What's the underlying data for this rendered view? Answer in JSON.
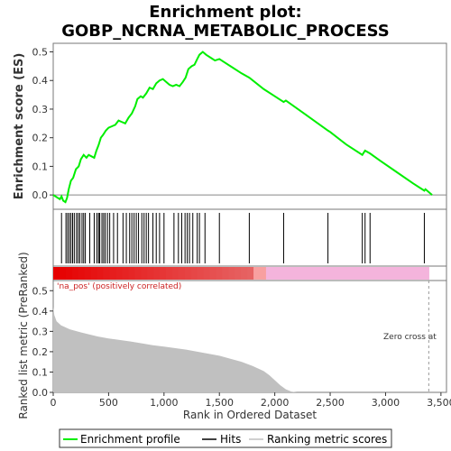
{
  "title_line1": "Enrichment plot:",
  "title_line2": "GOBP_NCRNA_METABOLIC_PROCESS",
  "colors": {
    "es_line": "#00ee00",
    "hits": "#000000",
    "metric_fill": "#c0c0c0",
    "pos_band": "#e80000",
    "neg_band": "#f4b4dc",
    "zero_cross": "#999999"
  },
  "chart_data": [
    {
      "type": "line",
      "name": "enrichment-score",
      "ylabel": "Enrichment score (ES)",
      "xlim": [
        0,
        3550
      ],
      "ylim": [
        -0.05,
        0.53
      ],
      "yticks": [
        0.0,
        0.1,
        0.2,
        0.3,
        0.4,
        0.5
      ],
      "ytick_labels": [
        "0.0",
        "0.1",
        "0.2",
        "0.3",
        "0.4",
        "0.5"
      ],
      "grid": false,
      "points": [
        [
          0,
          0.0
        ],
        [
          60,
          -0.015
        ],
        [
          75,
          -0.005
        ],
        [
          90,
          -0.02
        ],
        [
          110,
          -0.025
        ],
        [
          125,
          -0.01
        ],
        [
          140,
          0.02
        ],
        [
          160,
          0.05
        ],
        [
          180,
          0.06
        ],
        [
          205,
          0.09
        ],
        [
          230,
          0.1
        ],
        [
          250,
          0.125
        ],
        [
          275,
          0.14
        ],
        [
          300,
          0.13
        ],
        [
          320,
          0.14
        ],
        [
          345,
          0.135
        ],
        [
          370,
          0.13
        ],
        [
          390,
          0.155
        ],
        [
          410,
          0.175
        ],
        [
          430,
          0.2
        ],
        [
          450,
          0.21
        ],
        [
          475,
          0.225
        ],
        [
          500,
          0.235
        ],
        [
          530,
          0.24
        ],
        [
          560,
          0.245
        ],
        [
          590,
          0.26
        ],
        [
          620,
          0.255
        ],
        [
          650,
          0.25
        ],
        [
          680,
          0.27
        ],
        [
          710,
          0.285
        ],
        [
          740,
          0.31
        ],
        [
          760,
          0.335
        ],
        [
          790,
          0.345
        ],
        [
          810,
          0.34
        ],
        [
          840,
          0.355
        ],
        [
          870,
          0.375
        ],
        [
          900,
          0.37
        ],
        [
          930,
          0.39
        ],
        [
          960,
          0.4
        ],
        [
          990,
          0.405
        ],
        [
          1020,
          0.395
        ],
        [
          1050,
          0.385
        ],
        [
          1080,
          0.38
        ],
        [
          1110,
          0.385
        ],
        [
          1140,
          0.38
        ],
        [
          1170,
          0.395
        ],
        [
          1195,
          0.41
        ],
        [
          1220,
          0.44
        ],
        [
          1250,
          0.45
        ],
        [
          1275,
          0.455
        ],
        [
          1300,
          0.475
        ],
        [
          1320,
          0.49
        ],
        [
          1350,
          0.5
        ],
        [
          1380,
          0.49
        ],
        [
          1420,
          0.48
        ],
        [
          1460,
          0.47
        ],
        [
          1500,
          0.475
        ],
        [
          1600,
          0.45
        ],
        [
          1700,
          0.425
        ],
        [
          1770,
          0.41
        ],
        [
          1900,
          0.37
        ],
        [
          2000,
          0.345
        ],
        [
          2080,
          0.325
        ],
        [
          2100,
          0.33
        ],
        [
          2300,
          0.275
        ],
        [
          2480,
          0.225
        ],
        [
          2500,
          0.22
        ],
        [
          2650,
          0.175
        ],
        [
          2790,
          0.14
        ],
        [
          2815,
          0.155
        ],
        [
          2860,
          0.145
        ],
        [
          2950,
          0.12
        ],
        [
          3100,
          0.08
        ],
        [
          3250,
          0.04
        ],
        [
          3350,
          0.015
        ],
        [
          3360,
          0.02
        ],
        [
          3420,
          0.0
        ]
      ]
    },
    {
      "type": "scatter",
      "name": "hits",
      "xlabel": "",
      "hit_ranks": [
        75,
        115,
        130,
        145,
        160,
        175,
        190,
        210,
        225,
        240,
        260,
        275,
        290,
        330,
        370,
        395,
        410,
        420,
        440,
        455,
        470,
        490,
        510,
        545,
        580,
        630,
        660,
        690,
        710,
        730,
        750,
        770,
        800,
        820,
        840,
        860,
        900,
        930,
        960,
        1000,
        1090,
        1130,
        1160,
        1190,
        1210,
        1230,
        1260,
        1300,
        1320,
        1370,
        1500,
        1770,
        2080,
        2480,
        2790,
        2815,
        2860,
        3350
      ]
    },
    {
      "type": "area",
      "name": "ranked-list-metric",
      "xlabel": "Rank in Ordered Dataset",
      "ylabel": "Ranked list metric (PreRanked)",
      "xlim": [
        0,
        3550
      ],
      "ylim": [
        0.0,
        0.55
      ],
      "xticks": [
        0,
        500,
        1000,
        1500,
        2000,
        2500,
        3000,
        3500
      ],
      "xtick_labels": [
        "0",
        "500",
        "1,000",
        "1,500",
        "2,000",
        "2,500",
        "3,000",
        "3,500"
      ],
      "yticks": [
        0.0,
        0.1,
        0.2,
        0.3,
        0.4,
        0.5
      ],
      "ytick_labels": [
        "0.0",
        "0.1",
        "0.2",
        "0.3",
        "0.4",
        "0.5"
      ],
      "points": [
        [
          0,
          0.42
        ],
        [
          10,
          0.38
        ],
        [
          30,
          0.35
        ],
        [
          70,
          0.33
        ],
        [
          150,
          0.31
        ],
        [
          250,
          0.295
        ],
        [
          400,
          0.275
        ],
        [
          500,
          0.265
        ],
        [
          700,
          0.25
        ],
        [
          900,
          0.232
        ],
        [
          1000,
          0.225
        ],
        [
          1200,
          0.21
        ],
        [
          1300,
          0.2
        ],
        [
          1400,
          0.19
        ],
        [
          1500,
          0.18
        ],
        [
          1600,
          0.165
        ],
        [
          1700,
          0.15
        ],
        [
          1800,
          0.13
        ],
        [
          1900,
          0.105
        ],
        [
          1950,
          0.085
        ],
        [
          2000,
          0.06
        ],
        [
          2050,
          0.035
        ],
        [
          2100,
          0.015
        ],
        [
          2150,
          0.004
        ],
        [
          2200,
          0.0
        ],
        [
          3400,
          0.0
        ]
      ],
      "zero_cross_rank": 3390
    }
  ],
  "annotations": {
    "positive_label": "'na_pos' (positively correlated)",
    "zero_cross_label": "Zero cross at"
  },
  "legend": {
    "items": [
      {
        "label": "Enrichment profile",
        "swatch": "green-line"
      },
      {
        "label": "Hits",
        "swatch": "black-line"
      },
      {
        "label": "Ranking metric scores",
        "swatch": "gray-line"
      }
    ],
    "placement": "bottom"
  }
}
